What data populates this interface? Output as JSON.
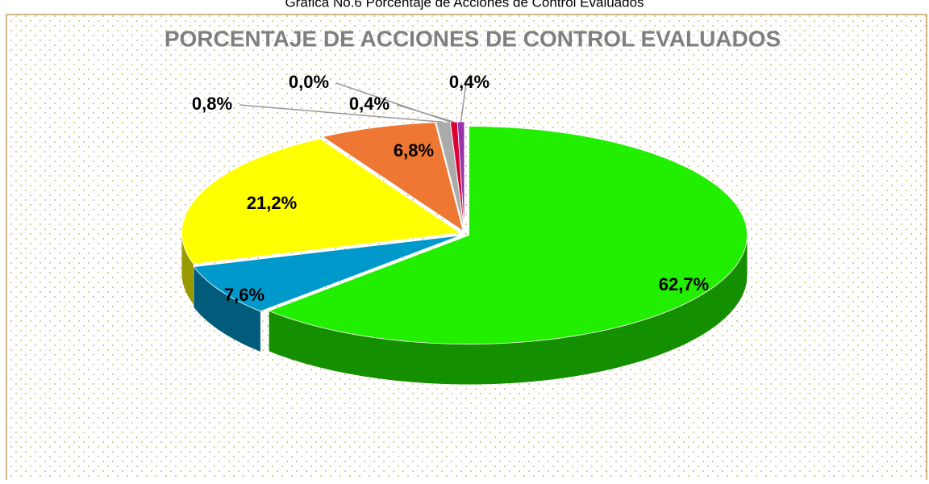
{
  "chart_data": {
    "type": "pie",
    "caption": "Gráfica No.6 Porcentaje de Acciones de Control Evaluados",
    "title": "PORCENTAJE DE ACCIONES DE CONTROL EVALUADOS",
    "values": [
      62.7,
      7.6,
      21.2,
      6.8,
      0.8,
      0.0,
      0.4,
      0.4
    ],
    "value_labels": [
      "62,7%",
      "7,6%",
      "21,2%",
      "6,8%",
      "0,8%",
      "0,0%",
      "0,4%",
      "0,4%"
    ],
    "colors": [
      "#22ee00",
      "#0099cc",
      "#ffff00",
      "#ee7733",
      "#aaaaaa",
      "#888888",
      "#dd0033",
      "#9933aa"
    ]
  }
}
